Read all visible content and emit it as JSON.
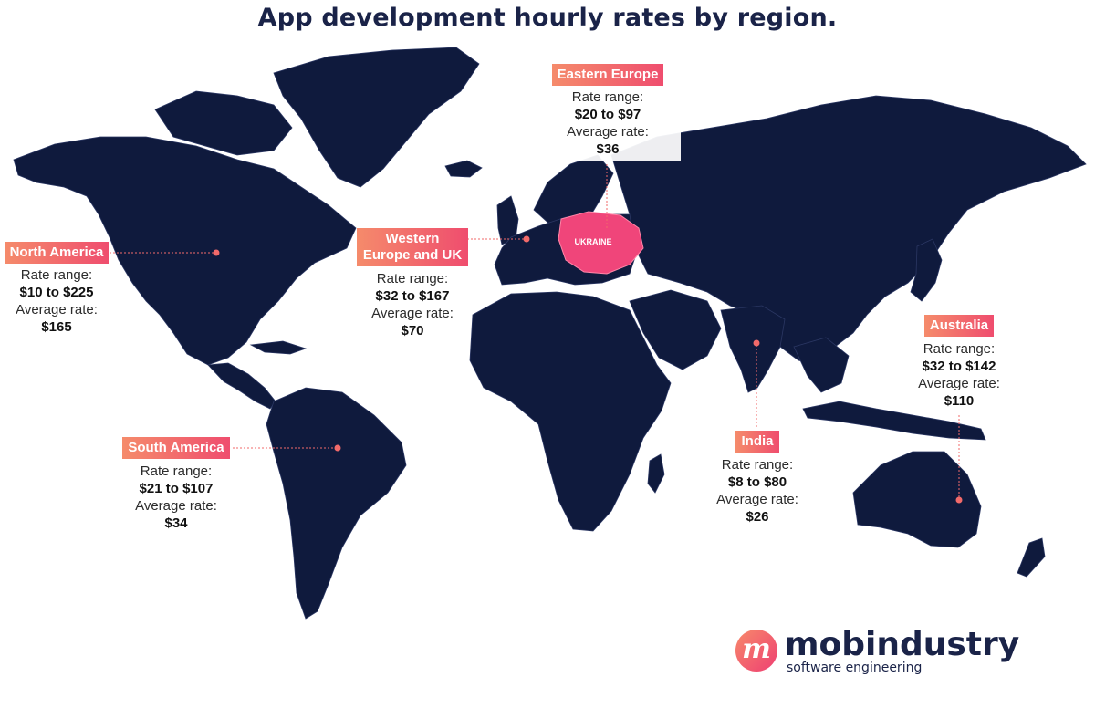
{
  "title": "App development hourly rates by region.",
  "labels": {
    "rate_range": "Rate range:",
    "average_rate": "Average rate:"
  },
  "highlight_country": "UKRAINE",
  "regions": {
    "north_america": {
      "name": "North America",
      "range": "$10 to $225",
      "average": "$165"
    },
    "south_america": {
      "name": "South America",
      "range": "$21 to $107",
      "average": "$34"
    },
    "western_europe": {
      "name": "Western Europe and UK",
      "range": "$32 to $167",
      "average": "$70"
    },
    "eastern_europe": {
      "name": "Eastern Europe",
      "range": "$20 to $97",
      "average": "$36"
    },
    "india": {
      "name": "India",
      "range": "$8 to $80",
      "average": "$26"
    },
    "australia": {
      "name": "Australia",
      "range": "$32 to $142",
      "average": "$110"
    }
  },
  "logo": {
    "mark": "m",
    "name": "mobindustry",
    "tagline": "software engineering"
  },
  "colors": {
    "land": "#0f1a3d",
    "accent": "#ef4d6e",
    "accent_light": "#f58b6b",
    "highlight": "#f0457a",
    "title": "#1a2348"
  }
}
